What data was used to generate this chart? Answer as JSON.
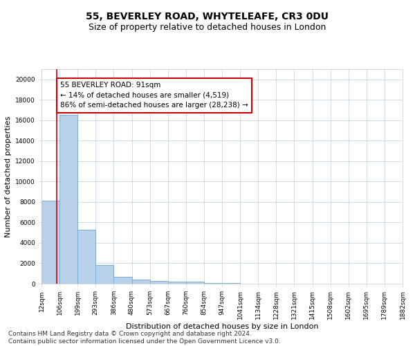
{
  "title": "55, BEVERLEY ROAD, WHYTELEAFE, CR3 0DU",
  "subtitle": "Size of property relative to detached houses in London",
  "xlabel": "Distribution of detached houses by size in London",
  "ylabel": "Number of detached properties",
  "bar_values": [
    8100,
    16500,
    5300,
    1850,
    700,
    380,
    300,
    220,
    170,
    80,
    50,
    30,
    20,
    15,
    10,
    8,
    5,
    3,
    2,
    1
  ],
  "bin_labels": [
    "12sqm",
    "106sqm",
    "199sqm",
    "293sqm",
    "386sqm",
    "480sqm",
    "573sqm",
    "667sqm",
    "760sqm",
    "854sqm",
    "947sqm",
    "1041sqm",
    "1134sqm",
    "1228sqm",
    "1321sqm",
    "1415sqm",
    "1508sqm",
    "1602sqm",
    "1695sqm",
    "1789sqm",
    "1882sqm"
  ],
  "bar_color": "#b8d0e8",
  "bar_edge_color": "#7aaed6",
  "ylim": [
    0,
    21000
  ],
  "yticks": [
    0,
    2000,
    4000,
    6000,
    8000,
    10000,
    12000,
    14000,
    16000,
    18000,
    20000
  ],
  "property_line_color": "#cc0000",
  "annotation_text": "55 BEVERLEY ROAD: 91sqm\n← 14% of detached houses are smaller (4,519)\n86% of semi-detached houses are larger (28,238) →",
  "annotation_box_color": "#ffffff",
  "annotation_box_edge": "#cc0000",
  "background_color": "#ffffff",
  "grid_color": "#c8d8e8",
  "footer_text": "Contains HM Land Registry data © Crown copyright and database right 2024.\nContains public sector information licensed under the Open Government Licence v3.0.",
  "title_fontsize": 10,
  "subtitle_fontsize": 9,
  "ylabel_fontsize": 8,
  "xlabel_fontsize": 8,
  "tick_fontsize": 6.5,
  "annot_fontsize": 7.5,
  "footer_fontsize": 6.5
}
